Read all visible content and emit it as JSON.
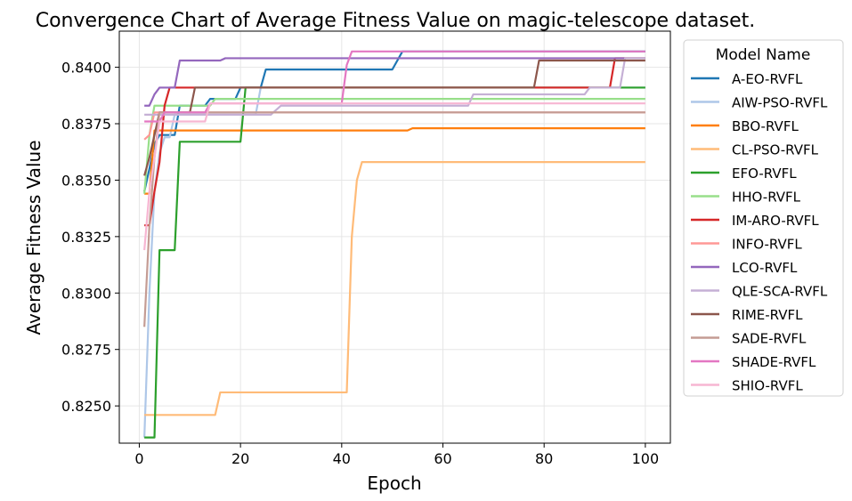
{
  "chart_data": {
    "type": "line",
    "title": "Convergence Chart of Average Fitness Value on magic-telescope dataset.",
    "xlabel": "Epoch",
    "ylabel": "Average Fitness Value",
    "xlim": [
      -3.95,
      104.95
    ],
    "ylim": [
      0.82335,
      0.8416
    ],
    "x_ticks": [
      0,
      20,
      40,
      60,
      80,
      100
    ],
    "y_ticks": [
      0.825,
      0.8275,
      0.83,
      0.8325,
      0.835,
      0.8375,
      0.84
    ],
    "x_tick_labels": [
      "0",
      "20",
      "40",
      "60",
      "80",
      "100"
    ],
    "y_tick_labels": [
      "0.8250",
      "0.8275",
      "0.8300",
      "0.8325",
      "0.8350",
      "0.8375",
      "0.8400"
    ],
    "grid": true,
    "legend": {
      "title": "Model Name",
      "placement": "outside-right"
    },
    "series": [
      {
        "name": "A-EO-RVFL",
        "color": "#1f77b4",
        "points": [
          [
            1,
            0.8345
          ],
          [
            2,
            0.8355
          ],
          [
            3,
            0.8366
          ],
          [
            4,
            0.837
          ],
          [
            7,
            0.837
          ],
          [
            8,
            0.8383
          ],
          [
            13,
            0.8383
          ],
          [
            14,
            0.8386
          ],
          [
            19,
            0.8386
          ],
          [
            20,
            0.8391
          ],
          [
            24,
            0.8391
          ],
          [
            25,
            0.8399
          ],
          [
            50,
            0.8399
          ],
          [
            52,
            0.8407
          ],
          [
            100,
            0.8407
          ]
        ]
      },
      {
        "name": "AIW-PSO-RVFL",
        "color": "#aec7e8",
        "points": [
          [
            1,
            0.8236
          ],
          [
            2,
            0.83
          ],
          [
            3,
            0.8345
          ],
          [
            4,
            0.8362
          ],
          [
            5,
            0.8369
          ],
          [
            6,
            0.8369
          ],
          [
            7,
            0.8379
          ],
          [
            23,
            0.8379
          ],
          [
            24,
            0.8391
          ],
          [
            100,
            0.8391
          ]
        ]
      },
      {
        "name": "BBO-RVFL",
        "color": "#ff7f0e",
        "points": [
          [
            1,
            0.8344
          ],
          [
            2,
            0.8344
          ],
          [
            3,
            0.8372
          ],
          [
            53,
            0.8372
          ],
          [
            54,
            0.8373
          ],
          [
            100,
            0.8373
          ]
        ]
      },
      {
        "name": "CL-PSO-RVFL",
        "color": "#ffbb78",
        "points": [
          [
            1,
            0.8246
          ],
          [
            15,
            0.8246
          ],
          [
            16,
            0.8256
          ],
          [
            41,
            0.8256
          ],
          [
            42,
            0.8325
          ],
          [
            43,
            0.835
          ],
          [
            44,
            0.8358
          ],
          [
            100,
            0.8358
          ]
        ]
      },
      {
        "name": "EFO-RVFL",
        "color": "#2ca02c",
        "points": [
          [
            1,
            0.8236
          ],
          [
            3,
            0.8236
          ],
          [
            4,
            0.8319
          ],
          [
            7,
            0.8319
          ],
          [
            8,
            0.8367
          ],
          [
            20,
            0.8367
          ],
          [
            21,
            0.8391
          ],
          [
            100,
            0.8391
          ]
        ]
      },
      {
        "name": "HHO-RVFL",
        "color": "#98df8a",
        "points": [
          [
            1,
            0.8344
          ],
          [
            2,
            0.837
          ],
          [
            3,
            0.8383
          ],
          [
            14,
            0.8383
          ],
          [
            15,
            0.8386
          ],
          [
            100,
            0.8386
          ]
        ]
      },
      {
        "name": "IM-ARO-RVFL",
        "color": "#d62728",
        "points": [
          [
            1,
            0.833
          ],
          [
            2,
            0.833
          ],
          [
            3,
            0.8345
          ],
          [
            4,
            0.8358
          ],
          [
            5,
            0.8383
          ],
          [
            6,
            0.8391
          ],
          [
            93,
            0.8391
          ],
          [
            94,
            0.8404
          ],
          [
            100,
            0.8404
          ]
        ]
      },
      {
        "name": "INFO-RVFL",
        "color": "#ff9896",
        "points": [
          [
            1,
            0.8368
          ],
          [
            2,
            0.837
          ],
          [
            3,
            0.838
          ],
          [
            100,
            0.838
          ]
        ]
      },
      {
        "name": "LCO-RVFL",
        "color": "#9467bd",
        "points": [
          [
            1,
            0.8383
          ],
          [
            2,
            0.8383
          ],
          [
            3,
            0.8388
          ],
          [
            4,
            0.8391
          ],
          [
            7,
            0.8391
          ],
          [
            8,
            0.8403
          ],
          [
            16,
            0.8403
          ],
          [
            17,
            0.8404
          ],
          [
            100,
            0.8404
          ]
        ]
      },
      {
        "name": "QLE-SCA-RVFL",
        "color": "#c5b0d5",
        "points": [
          [
            1,
            0.8379
          ],
          [
            26,
            0.8379
          ],
          [
            28,
            0.8383
          ],
          [
            65,
            0.8383
          ],
          [
            66,
            0.8388
          ],
          [
            88,
            0.8388
          ],
          [
            89,
            0.8391
          ],
          [
            95,
            0.8391
          ],
          [
            96,
            0.8404
          ],
          [
            100,
            0.8404
          ]
        ]
      },
      {
        "name": "RIME-RVFL",
        "color": "#8c564b",
        "points": [
          [
            1,
            0.8352
          ],
          [
            2,
            0.836
          ],
          [
            3,
            0.837
          ],
          [
            4,
            0.838
          ],
          [
            10,
            0.838
          ],
          [
            11,
            0.8391
          ],
          [
            78,
            0.8391
          ],
          [
            79,
            0.8403
          ],
          [
            100,
            0.8403
          ]
        ]
      },
      {
        "name": "SADE-RVFL",
        "color": "#c49c94",
        "points": [
          [
            1,
            0.8285
          ],
          [
            2,
            0.833
          ],
          [
            3,
            0.836
          ],
          [
            4,
            0.838
          ],
          [
            100,
            0.838
          ]
        ]
      },
      {
        "name": "SHADE-RVFL",
        "color": "#e377c2",
        "points": [
          [
            1,
            0.8376
          ],
          [
            4,
            0.8376
          ],
          [
            5,
            0.838
          ],
          [
            13,
            0.838
          ],
          [
            14,
            0.8384
          ],
          [
            40,
            0.8384
          ],
          [
            41,
            0.8401
          ],
          [
            42,
            0.8407
          ],
          [
            100,
            0.8407
          ]
        ]
      },
      {
        "name": "SHIO-RVFL",
        "color": "#f7b6d2",
        "points": [
          [
            1,
            0.8319
          ],
          [
            2,
            0.8345
          ],
          [
            3,
            0.836
          ],
          [
            4,
            0.8376
          ],
          [
            13,
            0.8376
          ],
          [
            14,
            0.8384
          ],
          [
            100,
            0.8384
          ]
        ]
      }
    ]
  }
}
